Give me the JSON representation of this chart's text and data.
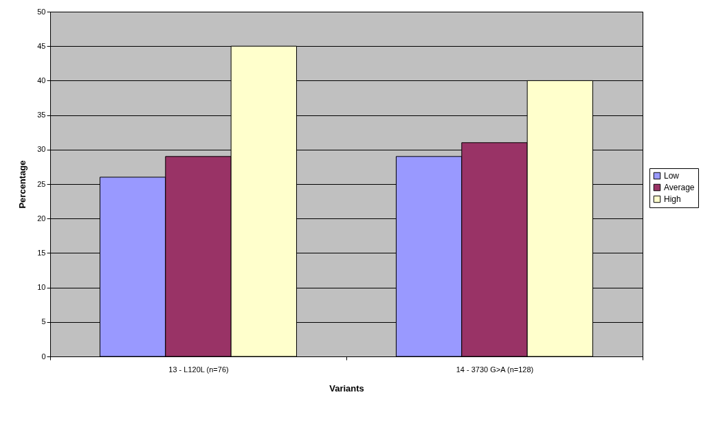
{
  "chart_data": {
    "type": "bar",
    "xlabel": "Variants",
    "ylabel": "Percentage",
    "categories": [
      "13 - L120L (n=76)",
      "14 - 3730 G>A (n=128)"
    ],
    "series": [
      {
        "name": "Low",
        "color": "#9999ff",
        "values": [
          26,
          29
        ]
      },
      {
        "name": "Average",
        "color": "#993366",
        "values": [
          29,
          31
        ]
      },
      {
        "name": "High",
        "color": "#ffffcc",
        "values": [
          45,
          40
        ]
      }
    ],
    "ylim": [
      0,
      50
    ],
    "yticks": [
      0,
      5,
      10,
      15,
      20,
      25,
      30,
      35,
      40,
      45,
      50
    ],
    "grid": "y",
    "legend": "right"
  }
}
